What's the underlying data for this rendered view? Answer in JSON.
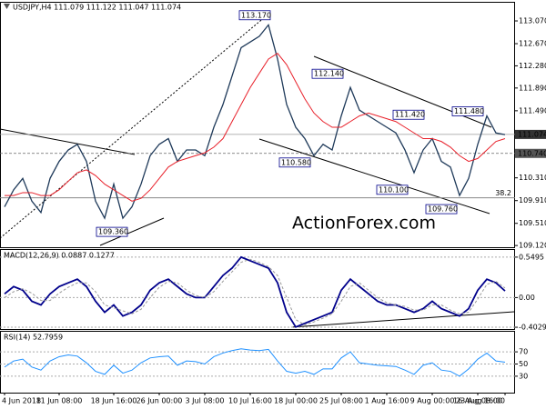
{
  "chart_data": [
    {
      "type": "line",
      "title": "USDJPY,H4 111.079 111.122 111.047 111.074",
      "categories": [
        "4 Jun 2018",
        null,
        null,
        null,
        null,
        null,
        "11 Jun 08:00",
        null,
        null,
        null,
        null,
        null,
        "18 Jun 16:00",
        null,
        null,
        null,
        null,
        "26 Jun 00:00",
        null,
        null,
        null,
        null,
        "3 Jul 08:00",
        null,
        null,
        null,
        null,
        "10 Jul 16:00",
        null,
        null,
        null,
        null,
        "18 Jul 00:00",
        null,
        null,
        null,
        null,
        "25 Jul 08:00",
        null,
        null,
        null,
        null,
        "1 Aug 16:00",
        null,
        null,
        null,
        null,
        "9 Aug 00:00",
        null,
        null,
        null,
        null,
        "16 Aug 08:00",
        null,
        null,
        "23 Aug 16:00"
      ],
      "series": [
        {
          "color": "#1f3a5a",
          "values": [
            109.8,
            110.1,
            110.3,
            109.9,
            109.7,
            110.3,
            110.6,
            110.8,
            110.9,
            110.6,
            109.9,
            109.6,
            110.2,
            109.6,
            109.8,
            110.2,
            110.7,
            110.9,
            111.0,
            110.6,
            110.8,
            110.8,
            110.7,
            111.2,
            111.6,
            112.1,
            112.6,
            112.7,
            112.8,
            113.0,
            112.4,
            111.6,
            111.2,
            111.0,
            110.7,
            110.9,
            110.8,
            111.4,
            111.9,
            111.5,
            111.4,
            111.3,
            111.2,
            111.1,
            110.8,
            110.4,
            110.8,
            111.0,
            110.6,
            110.5,
            110.0,
            110.3,
            110.9,
            111.4,
            111.1,
            111.07
          ]
        },
        {
          "color": "#e8202a",
          "values": [
            110.0,
            110.0,
            110.05,
            110.05,
            110.0,
            110.0,
            110.1,
            110.25,
            110.4,
            110.45,
            110.35,
            110.2,
            110.1,
            110.0,
            109.9,
            109.95,
            110.1,
            110.3,
            110.5,
            110.6,
            110.65,
            110.7,
            110.75,
            110.85,
            111.0,
            111.3,
            111.6,
            111.9,
            112.15,
            112.4,
            112.5,
            112.3,
            112.0,
            111.7,
            111.45,
            111.3,
            111.2,
            111.2,
            111.3,
            111.4,
            111.45,
            111.4,
            111.35,
            111.3,
            111.2,
            111.1,
            111.0,
            111.0,
            110.95,
            110.85,
            110.7,
            110.6,
            110.65,
            110.8,
            110.95,
            111.0
          ]
        }
      ],
      "ylim": [
        109.09,
        113.39
      ],
      "yticks": [
        {
          "value": 113.07,
          "label": "113.070"
        },
        {
          "value": 112.67,
          "label": "112.670"
        },
        {
          "value": 112.28,
          "label": "112.280"
        },
        {
          "value": 111.89,
          "label": "111.890"
        },
        {
          "value": 111.49,
          "label": "111.490"
        },
        {
          "value": 110.31,
          "label": "110.310"
        },
        {
          "value": 109.91,
          "label": "109.910"
        },
        {
          "value": 109.51,
          "label": "109.510"
        },
        {
          "value": 109.12,
          "label": "109.120"
        }
      ],
      "levels": [
        {
          "value": 111.074,
          "label": "111.074"
        },
        {
          "value": 110.74,
          "label": "110.740"
        }
      ],
      "fib_line": {
        "level": 38.2,
        "price": 109.96
      },
      "annotations": [
        {
          "value": 113.17,
          "label": "113.170"
        },
        {
          "value": 112.14,
          "label": "112.140"
        },
        {
          "value": 111.42,
          "label": "111.420"
        },
        {
          "value": 111.48,
          "label": "111.480"
        },
        {
          "value": 110.58,
          "label": "110.580"
        },
        {
          "value": 110.1,
          "label": "110.100"
        },
        {
          "value": 109.76,
          "label": "109.760"
        },
        {
          "value": 109.36,
          "label": "109.360"
        }
      ],
      "watermark": "ActionForex.com"
    },
    {
      "type": "line",
      "title": "MACD(12,26,9) 0.0887 0.1277",
      "series": [
        {
          "color": "#00008b",
          "values": [
            0.05,
            0.15,
            0.1,
            -0.05,
            -0.1,
            0.05,
            0.15,
            0.2,
            0.25,
            0.15,
            -0.05,
            -0.2,
            -0.1,
            -0.25,
            -0.2,
            -0.1,
            0.1,
            0.2,
            0.25,
            0.15,
            0.05,
            0.0,
            0.0,
            0.15,
            0.3,
            0.4,
            0.55,
            0.5,
            0.45,
            0.4,
            0.2,
            -0.2,
            -0.4,
            -0.35,
            -0.3,
            -0.25,
            -0.2,
            0.1,
            0.25,
            0.15,
            0.05,
            -0.05,
            -0.1,
            -0.1,
            -0.15,
            -0.2,
            -0.15,
            -0.05,
            -0.15,
            -0.2,
            -0.25,
            -0.15,
            0.1,
            0.25,
            0.2,
            0.09
          ]
        },
        {
          "color": "#9a9a9a",
          "values": [
            0.0,
            0.08,
            0.12,
            0.06,
            -0.04,
            -0.04,
            0.06,
            0.14,
            0.2,
            0.2,
            0.08,
            -0.1,
            -0.14,
            -0.18,
            -0.22,
            -0.16,
            0.0,
            0.14,
            0.22,
            0.2,
            0.1,
            0.03,
            0.0,
            0.08,
            0.22,
            0.35,
            0.48,
            0.52,
            0.48,
            0.42,
            0.3,
            0.0,
            -0.3,
            -0.37,
            -0.33,
            -0.28,
            -0.22,
            -0.05,
            0.15,
            0.2,
            0.1,
            0.0,
            -0.07,
            -0.1,
            -0.12,
            -0.17,
            -0.17,
            -0.1,
            -0.1,
            -0.17,
            -0.22,
            -0.2,
            -0.02,
            0.18,
            0.22,
            0.13
          ]
        }
      ],
      "ylim": [
        -0.427,
        0.647
      ],
      "yticks": [
        0.5495,
        {
          "value": 0,
          "label": "0.00"
        },
        -0.4029
      ]
    },
    {
      "type": "line",
      "title": "RSI(14) 52.7959",
      "series": [
        {
          "color": "#1e90ff",
          "values": [
            45,
            55,
            58,
            45,
            40,
            55,
            62,
            65,
            63,
            52,
            38,
            33,
            48,
            35,
            40,
            52,
            60,
            62,
            63,
            48,
            55,
            54,
            50,
            62,
            68,
            72,
            75,
            73,
            72,
            74,
            55,
            38,
            35,
            38,
            33,
            42,
            42,
            60,
            70,
            52,
            50,
            48,
            47,
            46,
            40,
            33,
            48,
            52,
            40,
            38,
            30,
            42,
            58,
            68,
            55,
            53
          ]
        }
      ],
      "ylim": [
        3,
        103
      ],
      "yticks": [
        70,
        50,
        30
      ]
    }
  ]
}
